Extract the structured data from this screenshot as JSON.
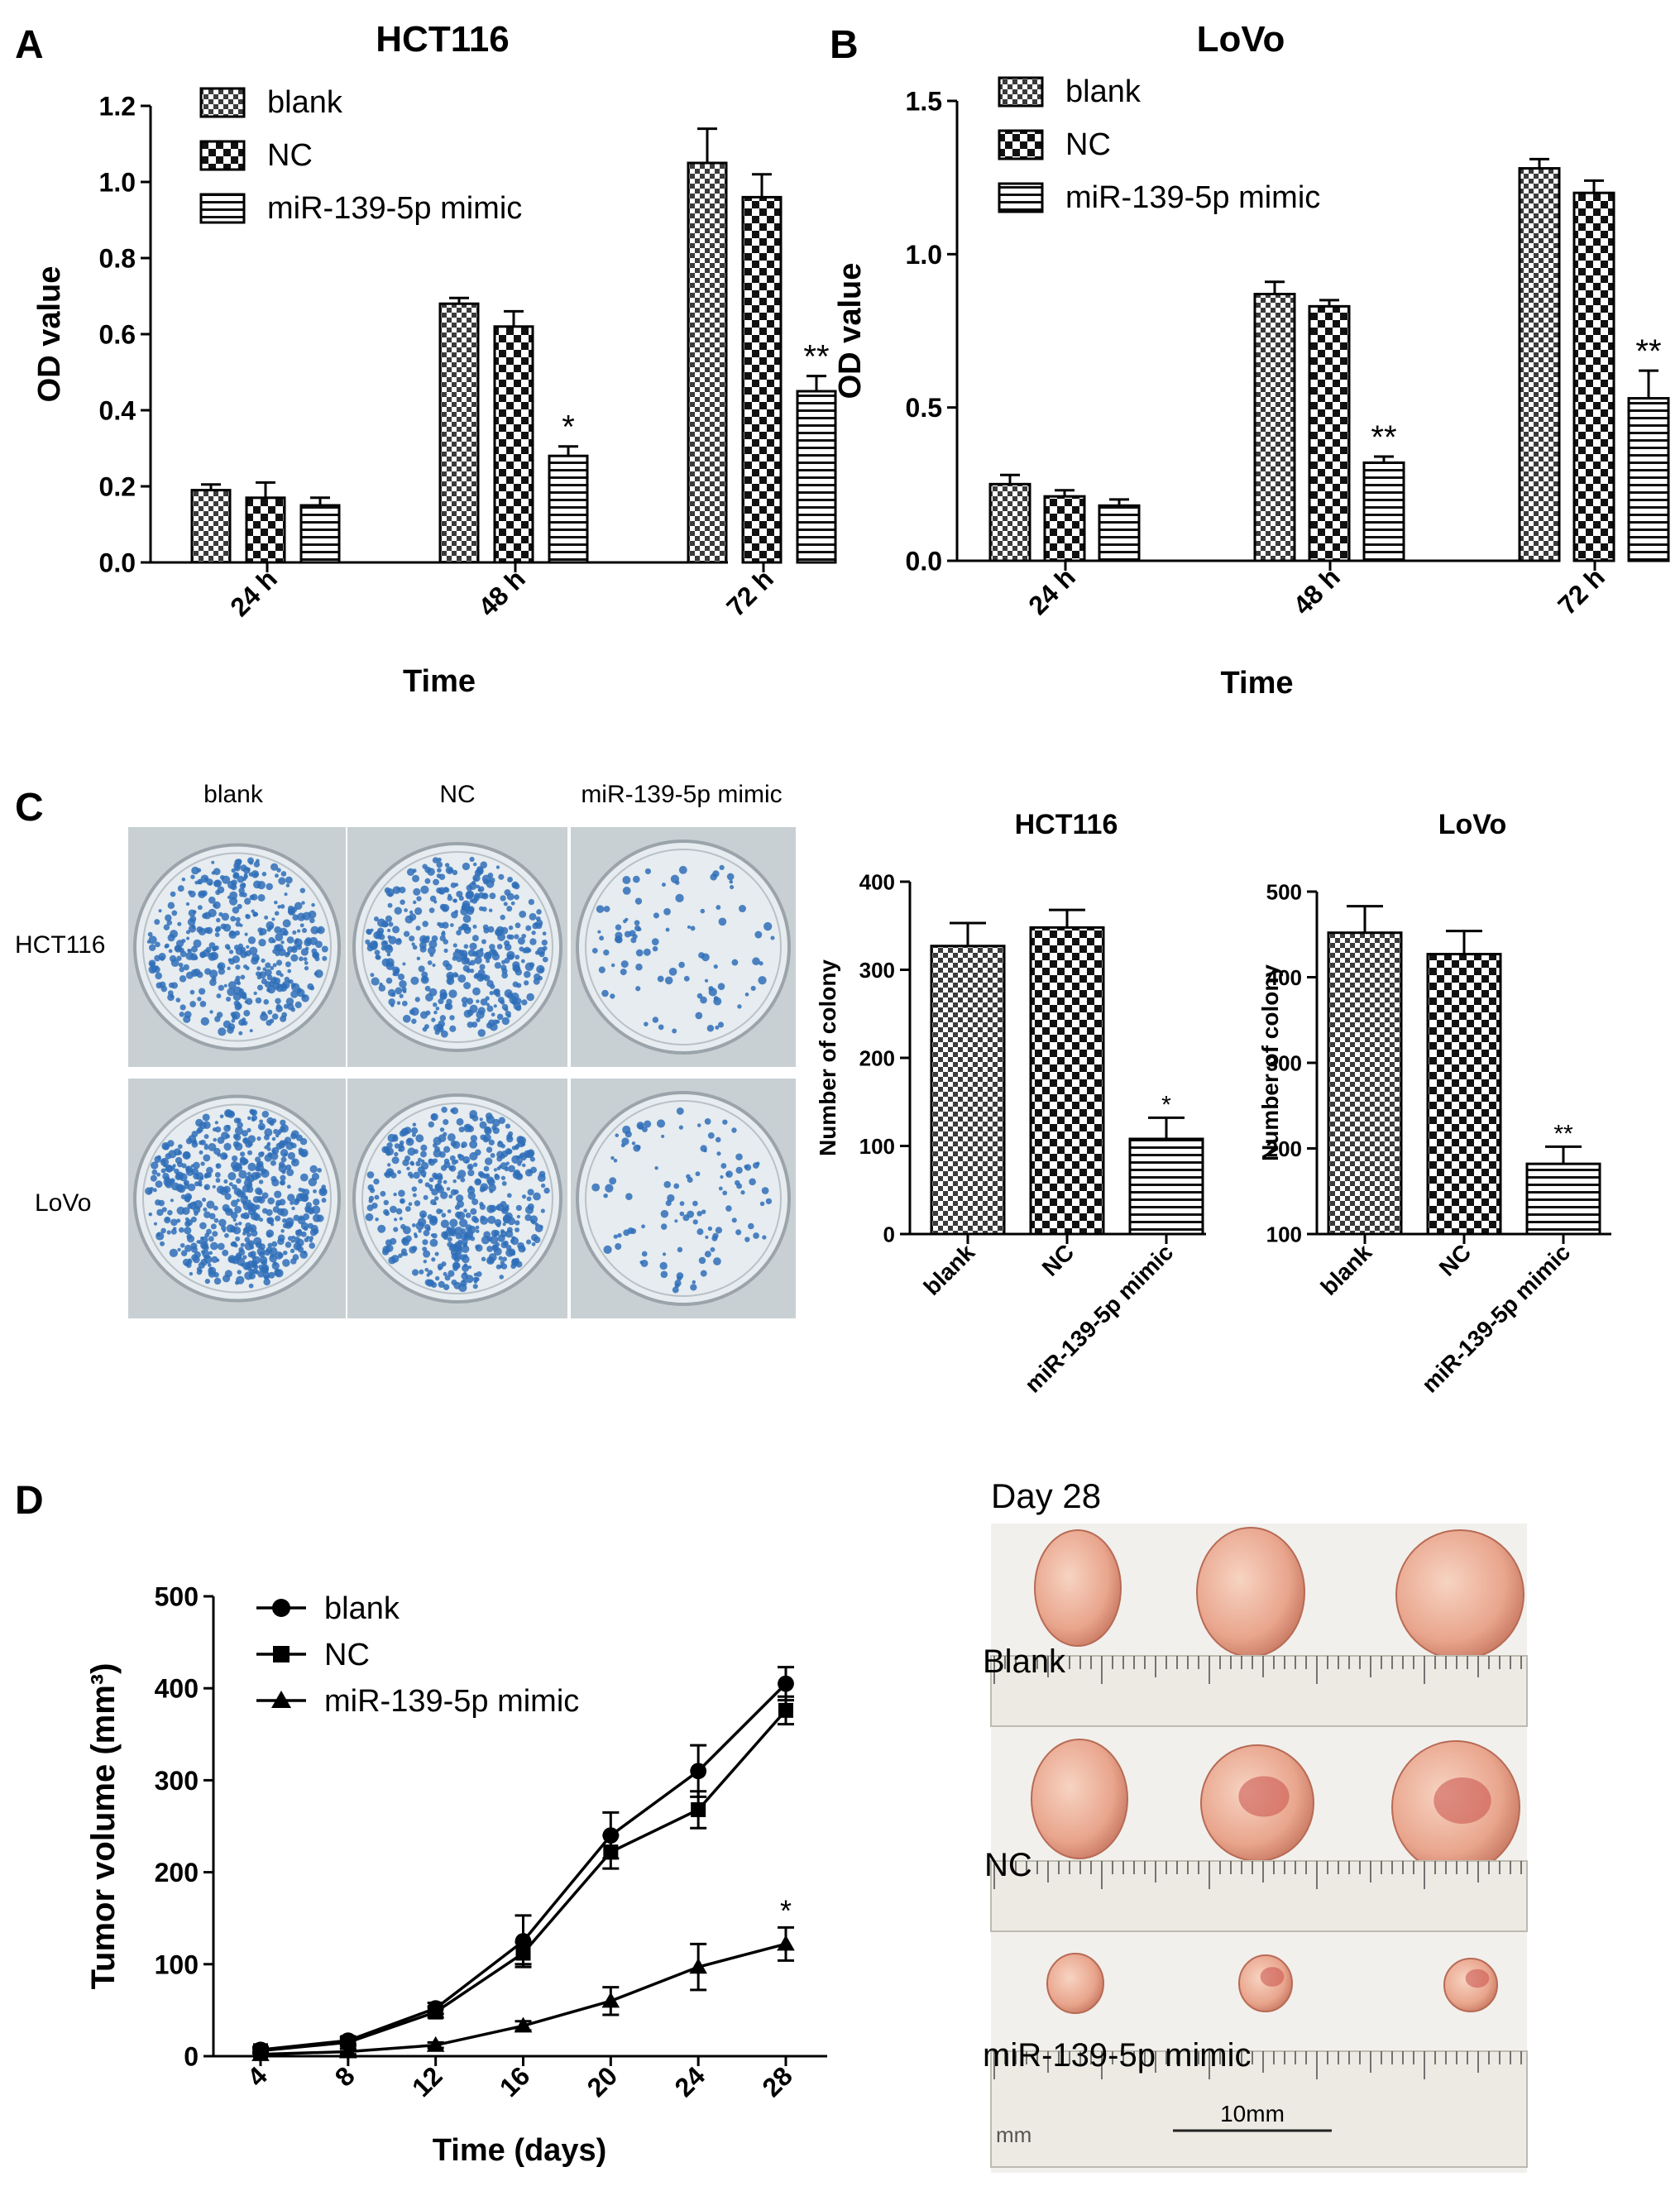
{
  "panels": {
    "A": {
      "letter": "A",
      "title": "HCT116",
      "xlabel": "Time",
      "ylabel": "OD value"
    },
    "B": {
      "letter": "B",
      "title": "LoVo",
      "xlabel": "Time",
      "ylabel": "OD value"
    },
    "C": {
      "letter": "C",
      "photo_columns": [
        "blank",
        "NC",
        "miR-139-5p mimic"
      ],
      "photo_rows": [
        "HCT116",
        "LoVo"
      ],
      "colors": {
        "colony": "#2f6fb8",
        "dish": "#e6ecef",
        "plate_bg": "#c9d0d4"
      },
      "chart_hct_title": "HCT116",
      "chart_lovo_title": "LoVo",
      "ylabel": "Number of colony"
    },
    "D": {
      "letter": "D",
      "xlabel": "Time (days)",
      "ylabel": "Tumor volume (mm³)",
      "photo_title": "Day 28",
      "photo_labels": [
        "Blank",
        "NC",
        "miR-139-5p mimic"
      ],
      "scale_label": "10mm",
      "ruler_text": "mm",
      "colors": {
        "tumor": "#e9a58d",
        "tumor_dark": "#c9504a",
        "ruler": "#eceae3",
        "photo_bg": "#f1f0ec"
      }
    }
  },
  "chart_data": [
    {
      "id": "A",
      "type": "bar",
      "title": "HCT116",
      "xlabel": "Time",
      "ylabel": "OD value",
      "categories": [
        "24 h",
        "48 h",
        "72 h"
      ],
      "ylim": [
        0,
        1.2
      ],
      "yticks": [
        "0.0",
        "0.2",
        "0.4",
        "0.6",
        "0.8",
        "1.0",
        "1.2"
      ],
      "legend_position": "top-left",
      "series": [
        {
          "name": "blank",
          "pattern": "checker-fine",
          "values": [
            0.19,
            0.68,
            1.05
          ],
          "errors": [
            0.015,
            0.015,
            0.09
          ]
        },
        {
          "name": "NC",
          "pattern": "checker-coarse",
          "values": [
            0.17,
            0.62,
            0.96
          ],
          "errors": [
            0.04,
            0.04,
            0.06
          ]
        },
        {
          "name": "miR-139-5p mimic",
          "pattern": "horizontal",
          "values": [
            0.15,
            0.28,
            0.45
          ],
          "errors": [
            0.02,
            0.025,
            0.04
          ]
        }
      ],
      "annotations": [
        {
          "category": "48 h",
          "series": "miR-139-5p mimic",
          "text": "*"
        },
        {
          "category": "72 h",
          "series": "miR-139-5p mimic",
          "text": "**"
        }
      ]
    },
    {
      "id": "B",
      "type": "bar",
      "title": "LoVo",
      "xlabel": "Time",
      "ylabel": "OD value",
      "categories": [
        "24 h",
        "48 h",
        "72 h"
      ],
      "ylim": [
        0,
        1.5
      ],
      "yticks": [
        "0.0",
        "0.5",
        "1.0",
        "1.5"
      ],
      "legend_position": "top-left",
      "series": [
        {
          "name": "blank",
          "pattern": "checker-fine",
          "values": [
            0.25,
            0.87,
            1.28
          ],
          "errors": [
            0.03,
            0.04,
            0.03
          ]
        },
        {
          "name": "NC",
          "pattern": "checker-coarse",
          "values": [
            0.21,
            0.83,
            1.2
          ],
          "errors": [
            0.02,
            0.02,
            0.04
          ]
        },
        {
          "name": "miR-139-5p mimic",
          "pattern": "horizontal",
          "values": [
            0.18,
            0.32,
            0.53
          ],
          "errors": [
            0.02,
            0.02,
            0.09
          ]
        }
      ],
      "annotations": [
        {
          "category": "48 h",
          "series": "miR-139-5p mimic",
          "text": "**"
        },
        {
          "category": "72 h",
          "series": "miR-139-5p mimic",
          "text": "**"
        }
      ]
    },
    {
      "id": "C-HCT116",
      "type": "bar",
      "title": "HCT116",
      "ylabel": "Number of colony",
      "categories": [
        "blank",
        "NC",
        "miR-139-5p mimic"
      ],
      "patterns": [
        "checker-fine",
        "checker-coarse",
        "horizontal"
      ],
      "values": [
        327,
        348,
        108
      ],
      "errors": [
        26,
        20,
        24
      ],
      "ylim": [
        0,
        400
      ],
      "yticks": [
        "0",
        "100",
        "200",
        "300",
        "400"
      ],
      "annotations": [
        {
          "category": "miR-139-5p mimic",
          "text": "*"
        }
      ]
    },
    {
      "id": "C-LoVo",
      "type": "bar",
      "title": "LoVo",
      "ylabel": "Number of colony",
      "categories": [
        "blank",
        "NC",
        "miR-139-5p mimic"
      ],
      "patterns": [
        "checker-fine",
        "checker-coarse",
        "horizontal"
      ],
      "values": [
        452,
        427,
        182
      ],
      "errors": [
        31,
        27,
        20
      ],
      "ylim": [
        100,
        500
      ],
      "yticks": [
        "100",
        "200",
        "300",
        "400",
        "500"
      ],
      "annotations": [
        {
          "category": "miR-139-5p mimic",
          "text": "**"
        }
      ]
    },
    {
      "id": "D",
      "type": "line",
      "xlabel": "Time (days)",
      "ylabel": "Tumor volume (mm³)",
      "x": [
        4,
        8,
        12,
        16,
        20,
        24,
        28
      ],
      "xticks": [
        "4",
        "8",
        "12",
        "16",
        "20",
        "24",
        "28"
      ],
      "ylim": [
        0,
        500
      ],
      "yticks": [
        "0",
        "100",
        "200",
        "300",
        "400",
        "500"
      ],
      "legend_position": "top-left",
      "series": [
        {
          "name": "blank",
          "marker": "circle",
          "values": [
            7,
            17,
            52,
            125,
            240,
            310,
            405
          ],
          "errors": [
            3,
            4,
            6,
            28,
            25,
            28,
            18
          ]
        },
        {
          "name": "NC",
          "marker": "square",
          "values": [
            6,
            15,
            48,
            112,
            222,
            268,
            376
          ],
          "errors": [
            3,
            4,
            6,
            12,
            18,
            20,
            15
          ]
        },
        {
          "name": "miR-139-5p mimic",
          "marker": "triangle",
          "values": [
            2,
            5,
            12,
            33,
            60,
            97,
            122
          ],
          "errors": [
            2,
            3,
            3,
            5,
            15,
            25,
            18
          ]
        }
      ],
      "annotations": [
        {
          "x": 28,
          "series": "miR-139-5p mimic",
          "text": "*"
        }
      ]
    }
  ]
}
